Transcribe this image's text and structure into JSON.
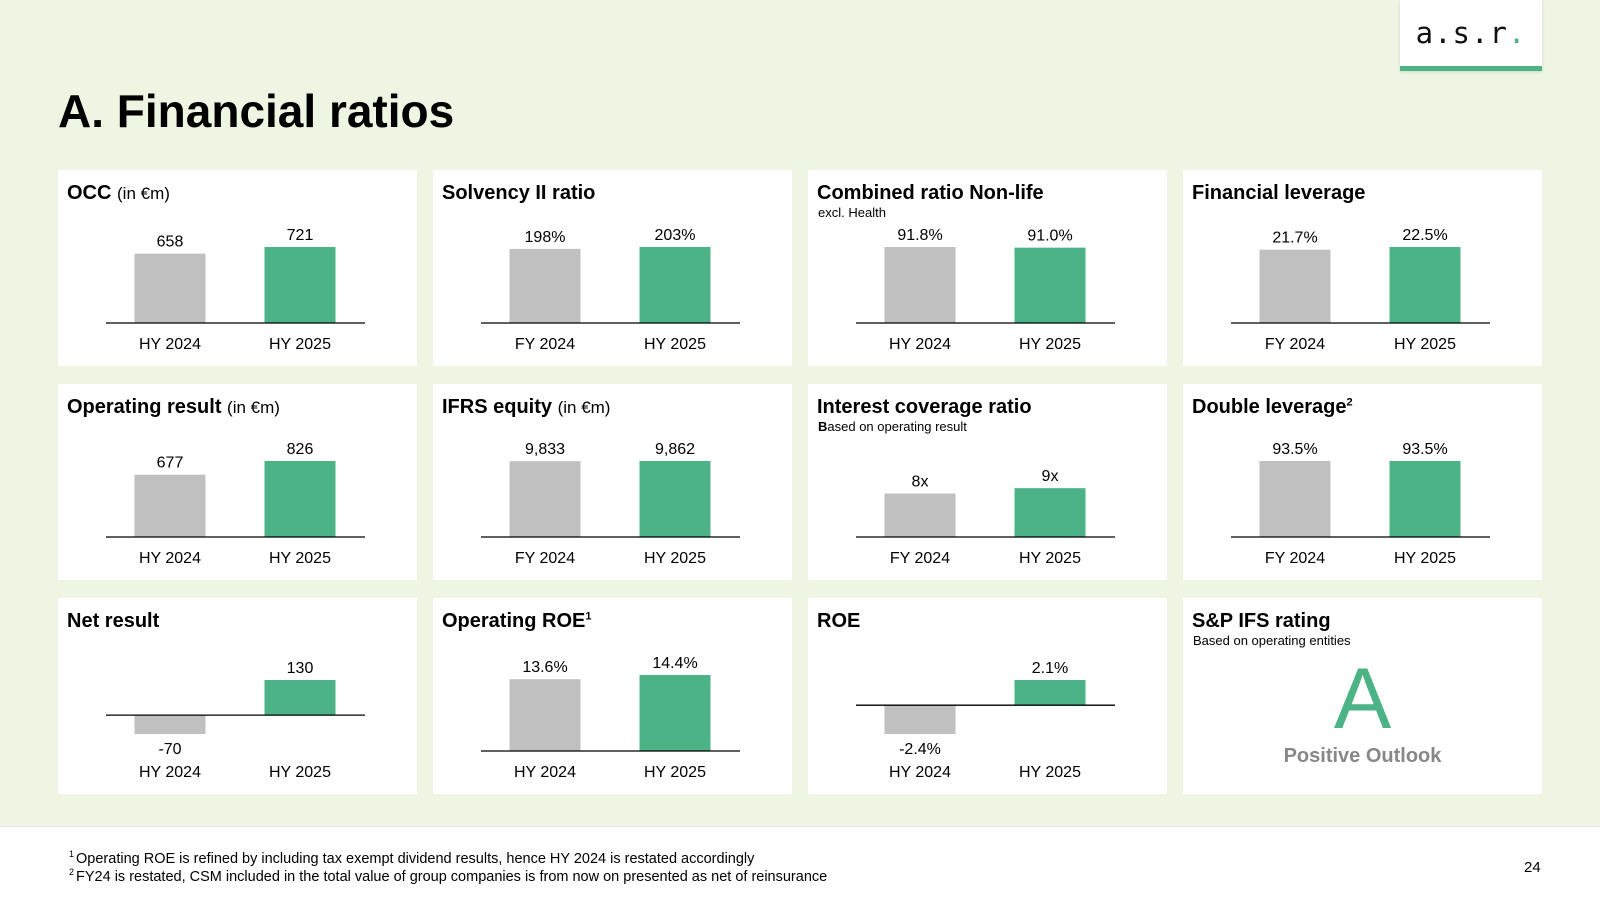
{
  "logo": {
    "text": "a.s.r",
    "dot": "."
  },
  "page_title": "A. Financial ratios",
  "cards": [
    {
      "title": "OCC",
      "unit": "(in €m)"
    },
    {
      "title": "Solvency II ratio"
    },
    {
      "title": "Combined ratio Non-life",
      "subtitle": "excl. Health"
    },
    {
      "title": "Financial leverage"
    },
    {
      "title": "Operating result",
      "unit": "(in €m)"
    },
    {
      "title": "IFRS equity",
      "unit": "(in €m)"
    },
    {
      "title": "Interest coverage ratio",
      "subtitle_bold": "B",
      "subtitle_rest": "ased on operating result"
    },
    {
      "title": "Double leverage",
      "sup": "2"
    },
    {
      "title": "Net result"
    },
    {
      "title": "Operating ROE",
      "sup": "1"
    },
    {
      "title": "ROE"
    },
    {
      "title": "S&P IFS rating",
      "subtitle": "Based on operating entities",
      "rating": "A",
      "outlook": "Positive Outlook"
    }
  ],
  "chart_data": [
    {
      "type": "bar",
      "title": "OCC (in €m)",
      "categories": [
        "HY 2024",
        "HY 2025"
      ],
      "values": [
        658,
        721
      ],
      "labels": [
        "658",
        "721"
      ],
      "ylim": [
        0,
        721
      ],
      "colors": [
        "#c0c0c0",
        "#4bb386"
      ]
    },
    {
      "type": "bar",
      "title": "Solvency II ratio",
      "categories": [
        "FY 2024",
        "HY 2025"
      ],
      "values": [
        198,
        203
      ],
      "labels": [
        "198%",
        "203%"
      ],
      "ylim": [
        0,
        203
      ],
      "colors": [
        "#c0c0c0",
        "#4bb386"
      ]
    },
    {
      "type": "bar",
      "title": "Combined ratio Non-life",
      "categories": [
        "HY 2024",
        "HY 2025"
      ],
      "values": [
        91.8,
        91.0
      ],
      "labels": [
        "91.8%",
        "91.0%"
      ],
      "ylim": [
        0,
        91.8
      ],
      "colors": [
        "#c0c0c0",
        "#4bb386"
      ]
    },
    {
      "type": "bar",
      "title": "Financial leverage",
      "categories": [
        "FY 2024",
        "HY 2025"
      ],
      "values": [
        21.7,
        22.5
      ],
      "labels": [
        "21.7%",
        "22.5%"
      ],
      "ylim": [
        0,
        22.5
      ],
      "colors": [
        "#c0c0c0",
        "#4bb386"
      ]
    },
    {
      "type": "bar",
      "title": "Operating result (in €m)",
      "categories": [
        "HY 2024",
        "HY 2025"
      ],
      "values": [
        677,
        826
      ],
      "labels": [
        "677",
        "826"
      ],
      "ylim": [
        0,
        826
      ],
      "colors": [
        "#c0c0c0",
        "#4bb386"
      ]
    },
    {
      "type": "bar",
      "title": "IFRS equity (in €m)",
      "categories": [
        "FY 2024",
        "HY 2025"
      ],
      "values": [
        9833,
        9862
      ],
      "labels": [
        "9,833",
        "9,862"
      ],
      "ylim": [
        0,
        9862
      ],
      "colors": [
        "#c0c0c0",
        "#4bb386"
      ]
    },
    {
      "type": "bar",
      "title": "Interest coverage ratio",
      "categories": [
        "FY 2024",
        "HY 2025"
      ],
      "values": [
        8,
        9
      ],
      "labels": [
        "8x",
        "9x"
      ],
      "ylim": [
        0,
        14
      ],
      "colors": [
        "#c0c0c0",
        "#4bb386"
      ]
    },
    {
      "type": "bar",
      "title": "Double leverage",
      "categories": [
        "FY 2024",
        "HY 2025"
      ],
      "values": [
        93.5,
        93.5
      ],
      "labels": [
        "93.5%",
        "93.5%"
      ],
      "ylim": [
        0,
        93.5
      ],
      "colors": [
        "#c0c0c0",
        "#4bb386"
      ]
    },
    {
      "type": "bar",
      "title": "Net result",
      "categories": [
        "HY 2024",
        "HY 2025"
      ],
      "values": [
        -70,
        130
      ],
      "labels": [
        "-70",
        "130"
      ],
      "ylim": [
        -70,
        130
      ],
      "colors": [
        "#c0c0c0",
        "#4bb386"
      ]
    },
    {
      "type": "bar",
      "title": "Operating ROE",
      "categories": [
        "HY 2024",
        "HY 2025"
      ],
      "values": [
        13.6,
        14.4
      ],
      "labels": [
        "13.6%",
        "14.4%"
      ],
      "ylim": [
        0,
        14.4
      ],
      "colors": [
        "#c0c0c0",
        "#4bb386"
      ]
    },
    {
      "type": "bar",
      "title": "ROE",
      "categories": [
        "HY 2024",
        "HY 2025"
      ],
      "values": [
        -2.4,
        2.1
      ],
      "labels": [
        "-2.4%",
        "2.1%"
      ],
      "ylim": [
        -2.4,
        2.1
      ],
      "colors": [
        "#c0c0c0",
        "#4bb386"
      ]
    }
  ],
  "footnotes": [
    {
      "num": "1",
      "text": "Operating ROE is refined by including tax exempt dividend results, hence HY 2024 is restated accordingly"
    },
    {
      "num": "2",
      "text": "FY24 is restated, CSM included in the total value of group companies is from now on presented as net of reinsurance"
    }
  ],
  "page_number": "24"
}
